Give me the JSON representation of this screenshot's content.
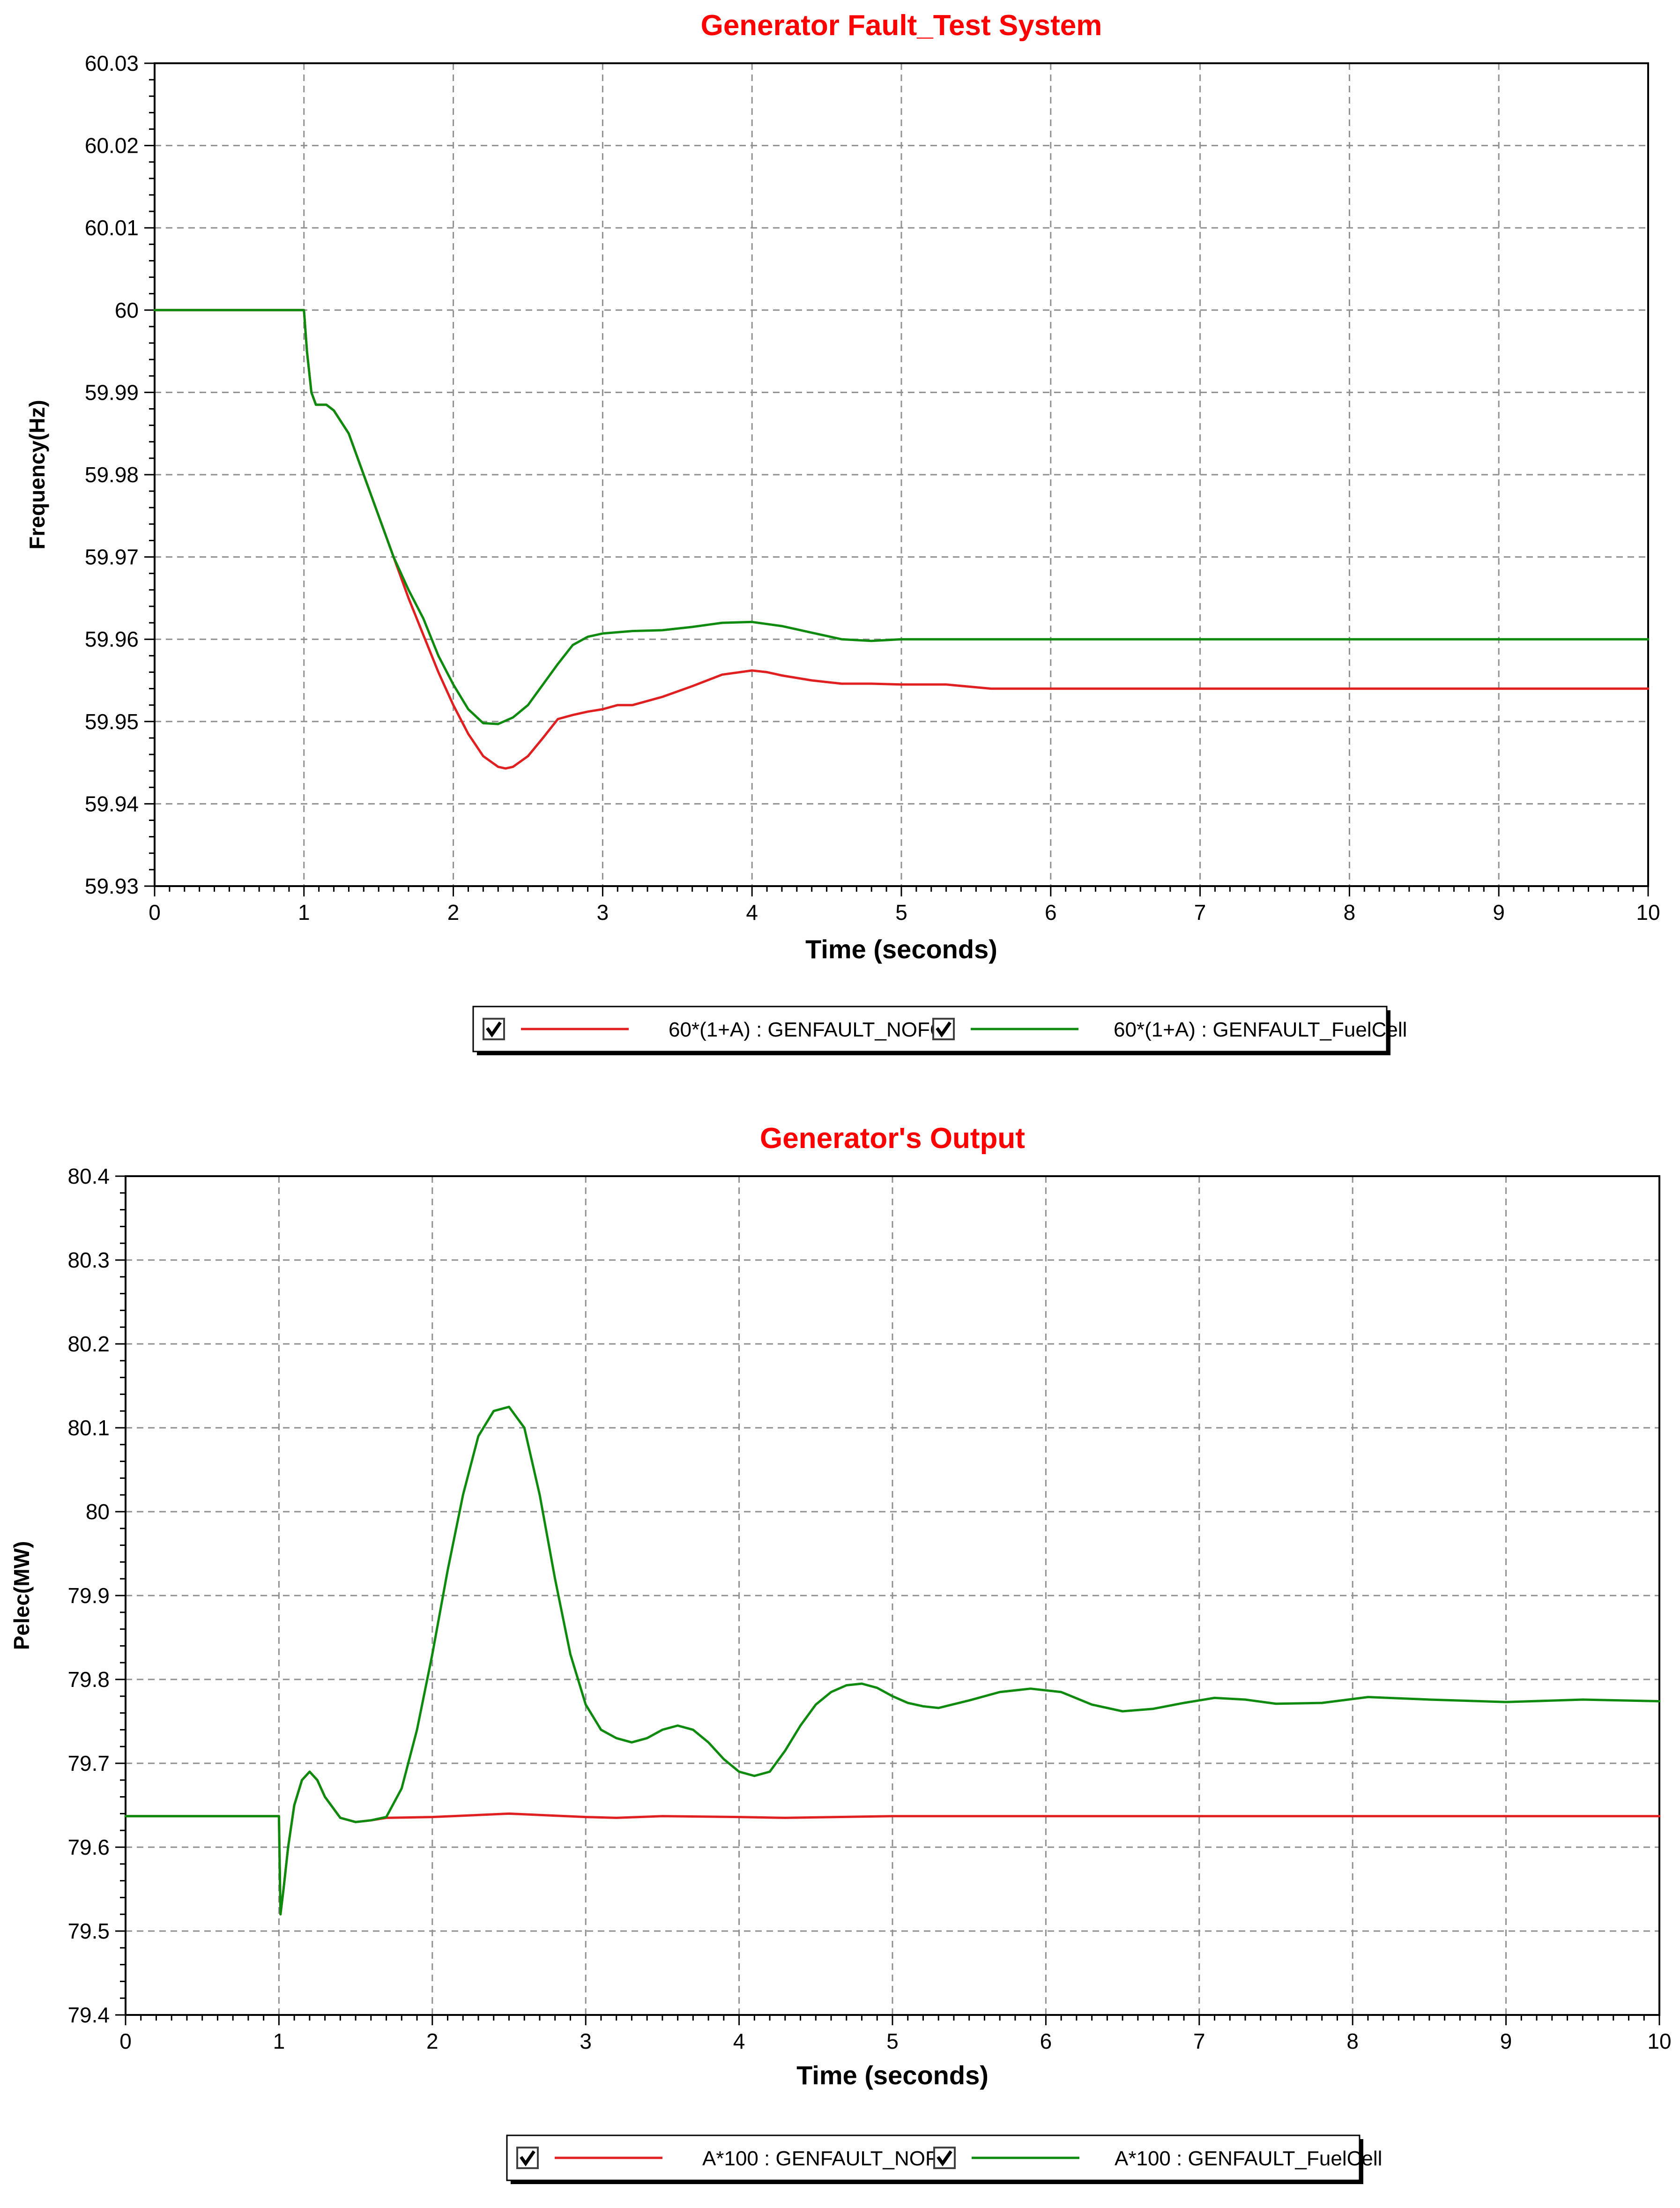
{
  "chart_data": [
    {
      "type": "line",
      "title": "Generator Fault_Test System",
      "xlabel": "Time (seconds)",
      "ylabel": "Frequency(Hz)",
      "xlim": [
        0,
        10
      ],
      "ylim": [
        59.93,
        60.03
      ],
      "x_ticks": [
        0,
        1,
        2,
        3,
        4,
        5,
        6,
        7,
        8,
        9,
        10
      ],
      "y_ticks": [
        59.93,
        59.94,
        59.95,
        59.96,
        59.97,
        59.98,
        59.99,
        60,
        60.01,
        60.02,
        60.03
      ],
      "y_tick_labels": [
        "59.93",
        "59.94",
        "59.95",
        "59.96",
        "59.97",
        "59.98",
        "59.99",
        "60",
        "60.01",
        "60.02",
        "60.03"
      ],
      "grid": true,
      "legend_position": "bottom",
      "series": [
        {
          "name": "60*(1+A) : GENFAULT_NOFC",
          "color": "#e02020",
          "x": [
            0,
            1.0,
            1.02,
            1.05,
            1.08,
            1.12,
            1.15,
            1.2,
            1.3,
            1.4,
            1.5,
            1.6,
            1.7,
            1.8,
            1.9,
            2.0,
            2.1,
            2.2,
            2.3,
            2.35,
            2.4,
            2.5,
            2.6,
            2.7,
            2.8,
            2.9,
            3.0,
            3.1,
            3.2,
            3.4,
            3.6,
            3.8,
            4.0,
            4.1,
            4.2,
            4.4,
            4.6,
            4.8,
            5.0,
            5.3,
            5.6,
            6.0,
            7.0,
            8.0,
            9.0,
            10.0
          ],
          "y": [
            60.0,
            60.0,
            59.995,
            59.99,
            59.9885,
            59.9885,
            59.9885,
            59.9878,
            59.985,
            59.98,
            59.975,
            59.97,
            59.965,
            59.9605,
            59.956,
            59.952,
            59.9485,
            59.9458,
            59.9445,
            59.9443,
            59.9445,
            59.9458,
            59.948,
            59.9503,
            59.9508,
            59.9512,
            59.9515,
            59.952,
            59.952,
            59.953,
            59.9543,
            59.9557,
            59.9562,
            59.956,
            59.9556,
            59.955,
            59.9546,
            59.9546,
            59.9545,
            59.9545,
            59.954,
            59.954,
            59.954,
            59.954,
            59.954,
            59.954
          ]
        },
        {
          "name": "60*(1+A) : GENFAULT_FuelCell",
          "color": "#0e8a0e",
          "x": [
            0,
            1.0,
            1.02,
            1.05,
            1.08,
            1.12,
            1.15,
            1.2,
            1.3,
            1.4,
            1.5,
            1.6,
            1.7,
            1.8,
            1.9,
            2.0,
            2.1,
            2.2,
            2.3,
            2.4,
            2.5,
            2.6,
            2.7,
            2.8,
            2.9,
            3.0,
            3.2,
            3.4,
            3.6,
            3.8,
            4.0,
            4.2,
            4.4,
            4.6,
            4.8,
            5.0,
            5.5,
            6.0,
            7.0,
            8.0,
            9.0,
            10.0
          ],
          "y": [
            60.0,
            60.0,
            59.995,
            59.99,
            59.9885,
            59.9885,
            59.9885,
            59.9878,
            59.985,
            59.98,
            59.975,
            59.97,
            59.966,
            59.9625,
            59.958,
            59.9545,
            59.9515,
            59.9498,
            59.9497,
            59.9505,
            59.952,
            59.9545,
            59.957,
            59.9593,
            59.9603,
            59.9607,
            59.961,
            59.9611,
            59.9615,
            59.962,
            59.9621,
            59.9616,
            59.9608,
            59.96,
            59.9598,
            59.96,
            59.96,
            59.96,
            59.96,
            59.96,
            59.96,
            59.96
          ]
        }
      ]
    },
    {
      "type": "line",
      "title": "Generator's Output",
      "xlabel": "Time (seconds)",
      "ylabel": "Pelec(MW)",
      "xlim": [
        0,
        10
      ],
      "ylim": [
        79.4,
        80.4
      ],
      "x_ticks": [
        0,
        1,
        2,
        3,
        4,
        5,
        6,
        7,
        8,
        9,
        10
      ],
      "y_ticks": [
        79.4,
        79.5,
        79.6,
        79.7,
        79.8,
        79.9,
        80,
        80.1,
        80.2,
        80.3,
        80.4
      ],
      "y_tick_labels": [
        "79.4",
        "79.5",
        "79.6",
        "79.7",
        "79.8",
        "79.9",
        "80",
        "80.1",
        "80.2",
        "80.3",
        "80.4"
      ],
      "grid": true,
      "legend_position": "bottom",
      "series": [
        {
          "name": "A*100 : GENFAULT_NOFC",
          "color": "#e02020",
          "x": [
            0,
            1.0,
            1.01,
            1.03,
            1.06,
            1.1,
            1.15,
            1.2,
            1.25,
            1.3,
            1.4,
            1.5,
            1.6,
            1.7,
            2.0,
            2.5,
            3.0,
            3.2,
            3.5,
            4.0,
            4.3,
            5.0,
            6.0,
            7.0,
            8.0,
            9.0,
            10.0
          ],
          "y": [
            79.637,
            79.637,
            79.52,
            79.55,
            79.6,
            79.65,
            79.68,
            79.69,
            79.68,
            79.66,
            79.635,
            79.63,
            79.632,
            79.635,
            79.636,
            79.64,
            79.636,
            79.635,
            79.637,
            79.636,
            79.635,
            79.637,
            79.637,
            79.637,
            79.637,
            79.637,
            79.637
          ]
        },
        {
          "name": "A*100 : GENFAULT_FuelCell",
          "color": "#0e8a0e",
          "x": [
            0,
            1.0,
            1.01,
            1.03,
            1.06,
            1.1,
            1.15,
            1.2,
            1.25,
            1.3,
            1.4,
            1.5,
            1.6,
            1.7,
            1.8,
            1.9,
            2.0,
            2.1,
            2.2,
            2.3,
            2.4,
            2.5,
            2.6,
            2.7,
            2.8,
            2.9,
            3.0,
            3.1,
            3.2,
            3.3,
            3.4,
            3.5,
            3.6,
            3.7,
            3.8,
            3.9,
            4.0,
            4.1,
            4.2,
            4.3,
            4.4,
            4.5,
            4.6,
            4.7,
            4.8,
            4.9,
            5.0,
            5.1,
            5.2,
            5.3,
            5.5,
            5.7,
            5.9,
            6.1,
            6.3,
            6.5,
            6.7,
            6.9,
            7.1,
            7.3,
            7.5,
            7.8,
            8.1,
            8.5,
            9.0,
            9.5,
            10.0
          ],
          "y": [
            79.637,
            79.637,
            79.52,
            79.55,
            79.6,
            79.65,
            79.68,
            79.69,
            79.68,
            79.66,
            79.635,
            79.63,
            79.632,
            79.636,
            79.67,
            79.74,
            79.83,
            79.93,
            80.02,
            80.09,
            80.12,
            80.125,
            80.1,
            80.02,
            79.92,
            79.83,
            79.77,
            79.74,
            79.73,
            79.725,
            79.73,
            79.74,
            79.745,
            79.74,
            79.725,
            79.705,
            79.69,
            79.685,
            79.69,
            79.715,
            79.745,
            79.77,
            79.785,
            79.793,
            79.795,
            79.79,
            79.78,
            79.772,
            79.768,
            79.766,
            79.775,
            79.785,
            79.789,
            79.785,
            79.77,
            79.762,
            79.765,
            79.772,
            79.778,
            79.776,
            79.771,
            79.772,
            79.779,
            79.776,
            79.773,
            79.776,
            79.774
          ]
        }
      ]
    }
  ]
}
